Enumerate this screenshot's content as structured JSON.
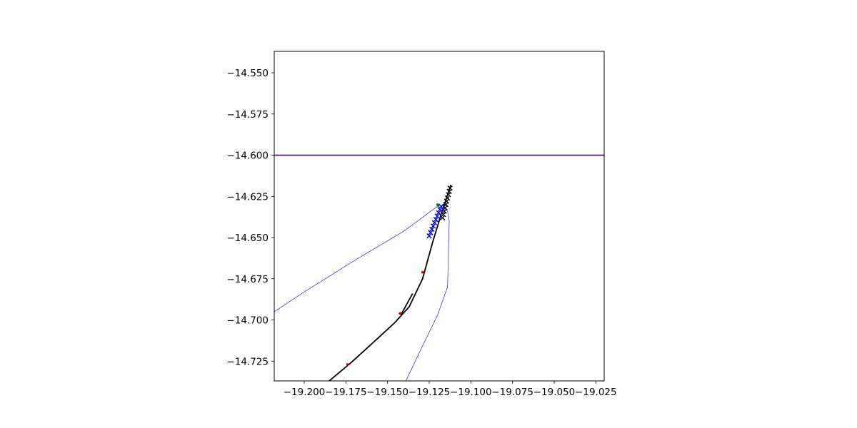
{
  "chart_data": {
    "type": "line",
    "title": "",
    "xlabel": "",
    "ylabel": "",
    "xlim": [
      -19.218,
      -19.02
    ],
    "ylim": [
      -14.737,
      -14.537
    ],
    "grid": false,
    "x_ticks": [
      {
        "value": -19.2,
        "label": "−19.200"
      },
      {
        "value": -19.175,
        "label": "−19.175"
      },
      {
        "value": -19.15,
        "label": "−19.150"
      },
      {
        "value": -19.125,
        "label": "−19.125"
      },
      {
        "value": -19.1,
        "label": "−19.100"
      },
      {
        "value": -19.075,
        "label": "−19.075"
      },
      {
        "value": -19.05,
        "label": "−19.050"
      },
      {
        "value": -19.025,
        "label": "−19.025"
      }
    ],
    "y_ticks": [
      {
        "value": -14.55,
        "label": "−14.550"
      },
      {
        "value": -14.575,
        "label": "−14.575"
      },
      {
        "value": -14.6,
        "label": "−14.600"
      },
      {
        "value": -14.625,
        "label": "−14.625"
      },
      {
        "value": -14.65,
        "label": "−14.650"
      },
      {
        "value": -14.675,
        "label": "−14.675"
      },
      {
        "value": -14.7,
        "label": "−14.700"
      },
      {
        "value": -14.725,
        "label": "−14.725"
      }
    ],
    "series": [
      {
        "kind": "hline",
        "color": "#4b0082",
        "y": -14.6
      },
      {
        "kind": "line",
        "color": "#0000ff",
        "width": 0.6,
        "points": [
          [
            -19.218,
            -14.695
          ],
          [
            -19.2,
            -14.683
          ],
          [
            -19.17,
            -14.664
          ],
          [
            -19.14,
            -14.646
          ],
          [
            -19.12,
            -14.631
          ],
          [
            -19.114,
            -14.634
          ],
          [
            -19.113,
            -14.64
          ],
          [
            -19.114,
            -14.68
          ],
          [
            -19.12,
            -14.697
          ],
          [
            -19.131,
            -14.72
          ],
          [
            -19.139,
            -14.737
          ]
        ]
      },
      {
        "kind": "line",
        "color": "#000000",
        "width": 1.8,
        "points": [
          [
            -19.185,
            -14.737
          ],
          [
            -19.172,
            -14.726
          ],
          [
            -19.159,
            -14.714
          ],
          [
            -19.146,
            -14.702
          ],
          [
            -19.137,
            -14.692
          ],
          [
            -19.129,
            -14.675
          ],
          [
            -19.123,
            -14.653
          ],
          [
            -19.117,
            -14.633
          ],
          [
            -19.112,
            -14.618
          ]
        ]
      },
      {
        "kind": "line",
        "color": "#000000",
        "width": 1.8,
        "points": [
          [
            -19.142,
            -14.697
          ],
          [
            -19.135,
            -14.684
          ]
        ]
      },
      {
        "kind": "markers",
        "marker": "x",
        "color": "#000000",
        "points": [
          [
            -19.1125,
            -14.62
          ],
          [
            -19.113,
            -14.622
          ],
          [
            -19.1135,
            -14.624
          ],
          [
            -19.114,
            -14.626
          ],
          [
            -19.1145,
            -14.628
          ],
          [
            -19.115,
            -14.63
          ],
          [
            -19.1155,
            -14.632
          ],
          [
            -19.116,
            -14.634
          ],
          [
            -19.1165,
            -14.636
          ],
          [
            -19.117,
            -14.638
          ]
        ]
      },
      {
        "kind": "markers",
        "marker": "x",
        "color": "#0000ff",
        "points": [
          [
            -19.125,
            -14.649
          ],
          [
            -19.1242,
            -14.647
          ],
          [
            -19.1234,
            -14.645
          ],
          [
            -19.1226,
            -14.643
          ],
          [
            -19.1218,
            -14.641
          ],
          [
            -19.121,
            -14.639
          ],
          [
            -19.1202,
            -14.637
          ],
          [
            -19.1194,
            -14.635
          ],
          [
            -19.1186,
            -14.633
          ],
          [
            -19.1178,
            -14.631
          ]
        ]
      },
      {
        "kind": "markers",
        "marker": "dot",
        "color": "#008000",
        "points": [
          [
            -19.12,
            -14.63
          ],
          [
            -19.1195,
            -14.6305
          ]
        ]
      },
      {
        "kind": "markers",
        "marker": "dot",
        "color": "#cc0000",
        "points": [
          [
            -19.174,
            -14.727
          ],
          [
            -19.1425,
            -14.696
          ],
          [
            -19.129,
            -14.671
          ]
        ]
      }
    ]
  }
}
